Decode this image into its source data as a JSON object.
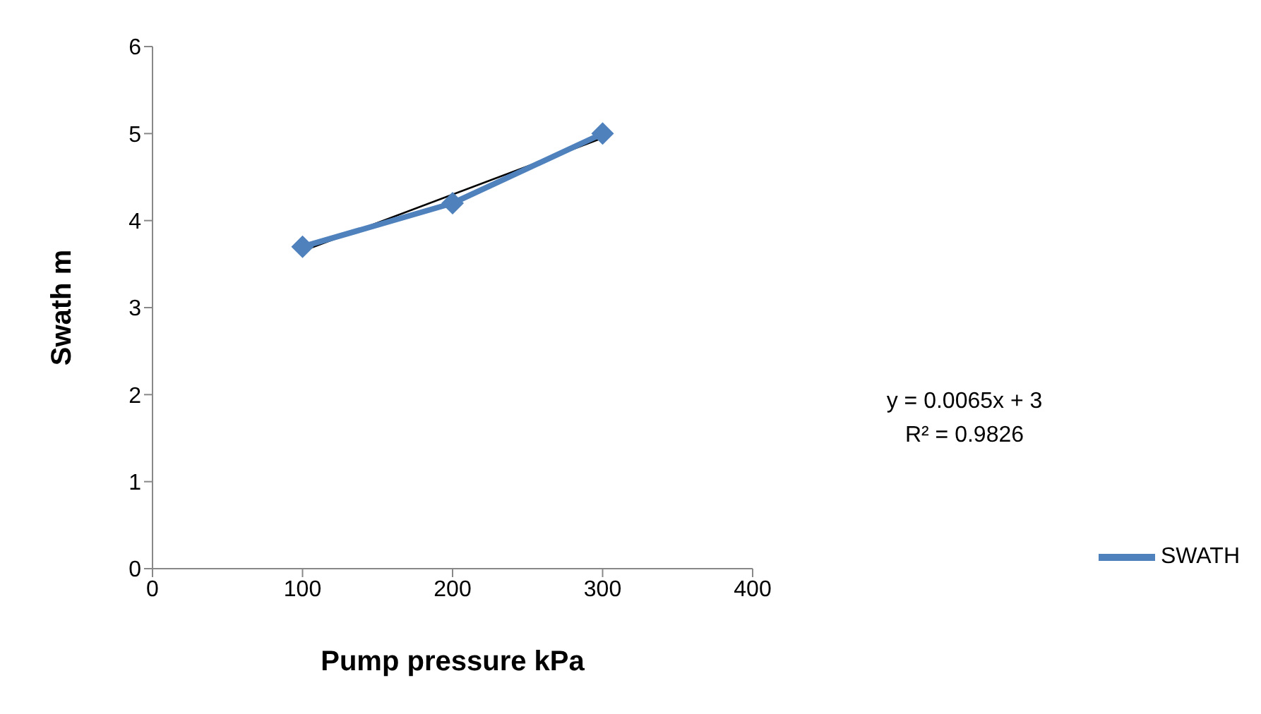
{
  "chart_data": {
    "type": "line",
    "xlabel": "Pump pressure kPa",
    "ylabel": "Swath m",
    "x": [
      100,
      200,
      300
    ],
    "series": [
      {
        "name": "SWATH",
        "color": "#4f81bd",
        "values": [
          3.7,
          4.2,
          5.0
        ],
        "marker": "diamond"
      },
      {
        "type": "line",
        "x": [
          100,
          300
        ],
        "values": [
          3.65,
          4.95
        ],
        "color": "#000000",
        "marker": "none"
      }
    ],
    "xlim": [
      0,
      400
    ],
    "xticks": [
      0,
      100,
      200,
      300,
      400
    ],
    "ylim": [
      0,
      6
    ],
    "yticks": [
      0,
      1,
      2,
      3,
      4,
      5,
      6
    ],
    "grid": false,
    "legend": "right",
    "annotations": [
      "y = 0.0065x + 3",
      "R² = 0.9826"
    ]
  }
}
